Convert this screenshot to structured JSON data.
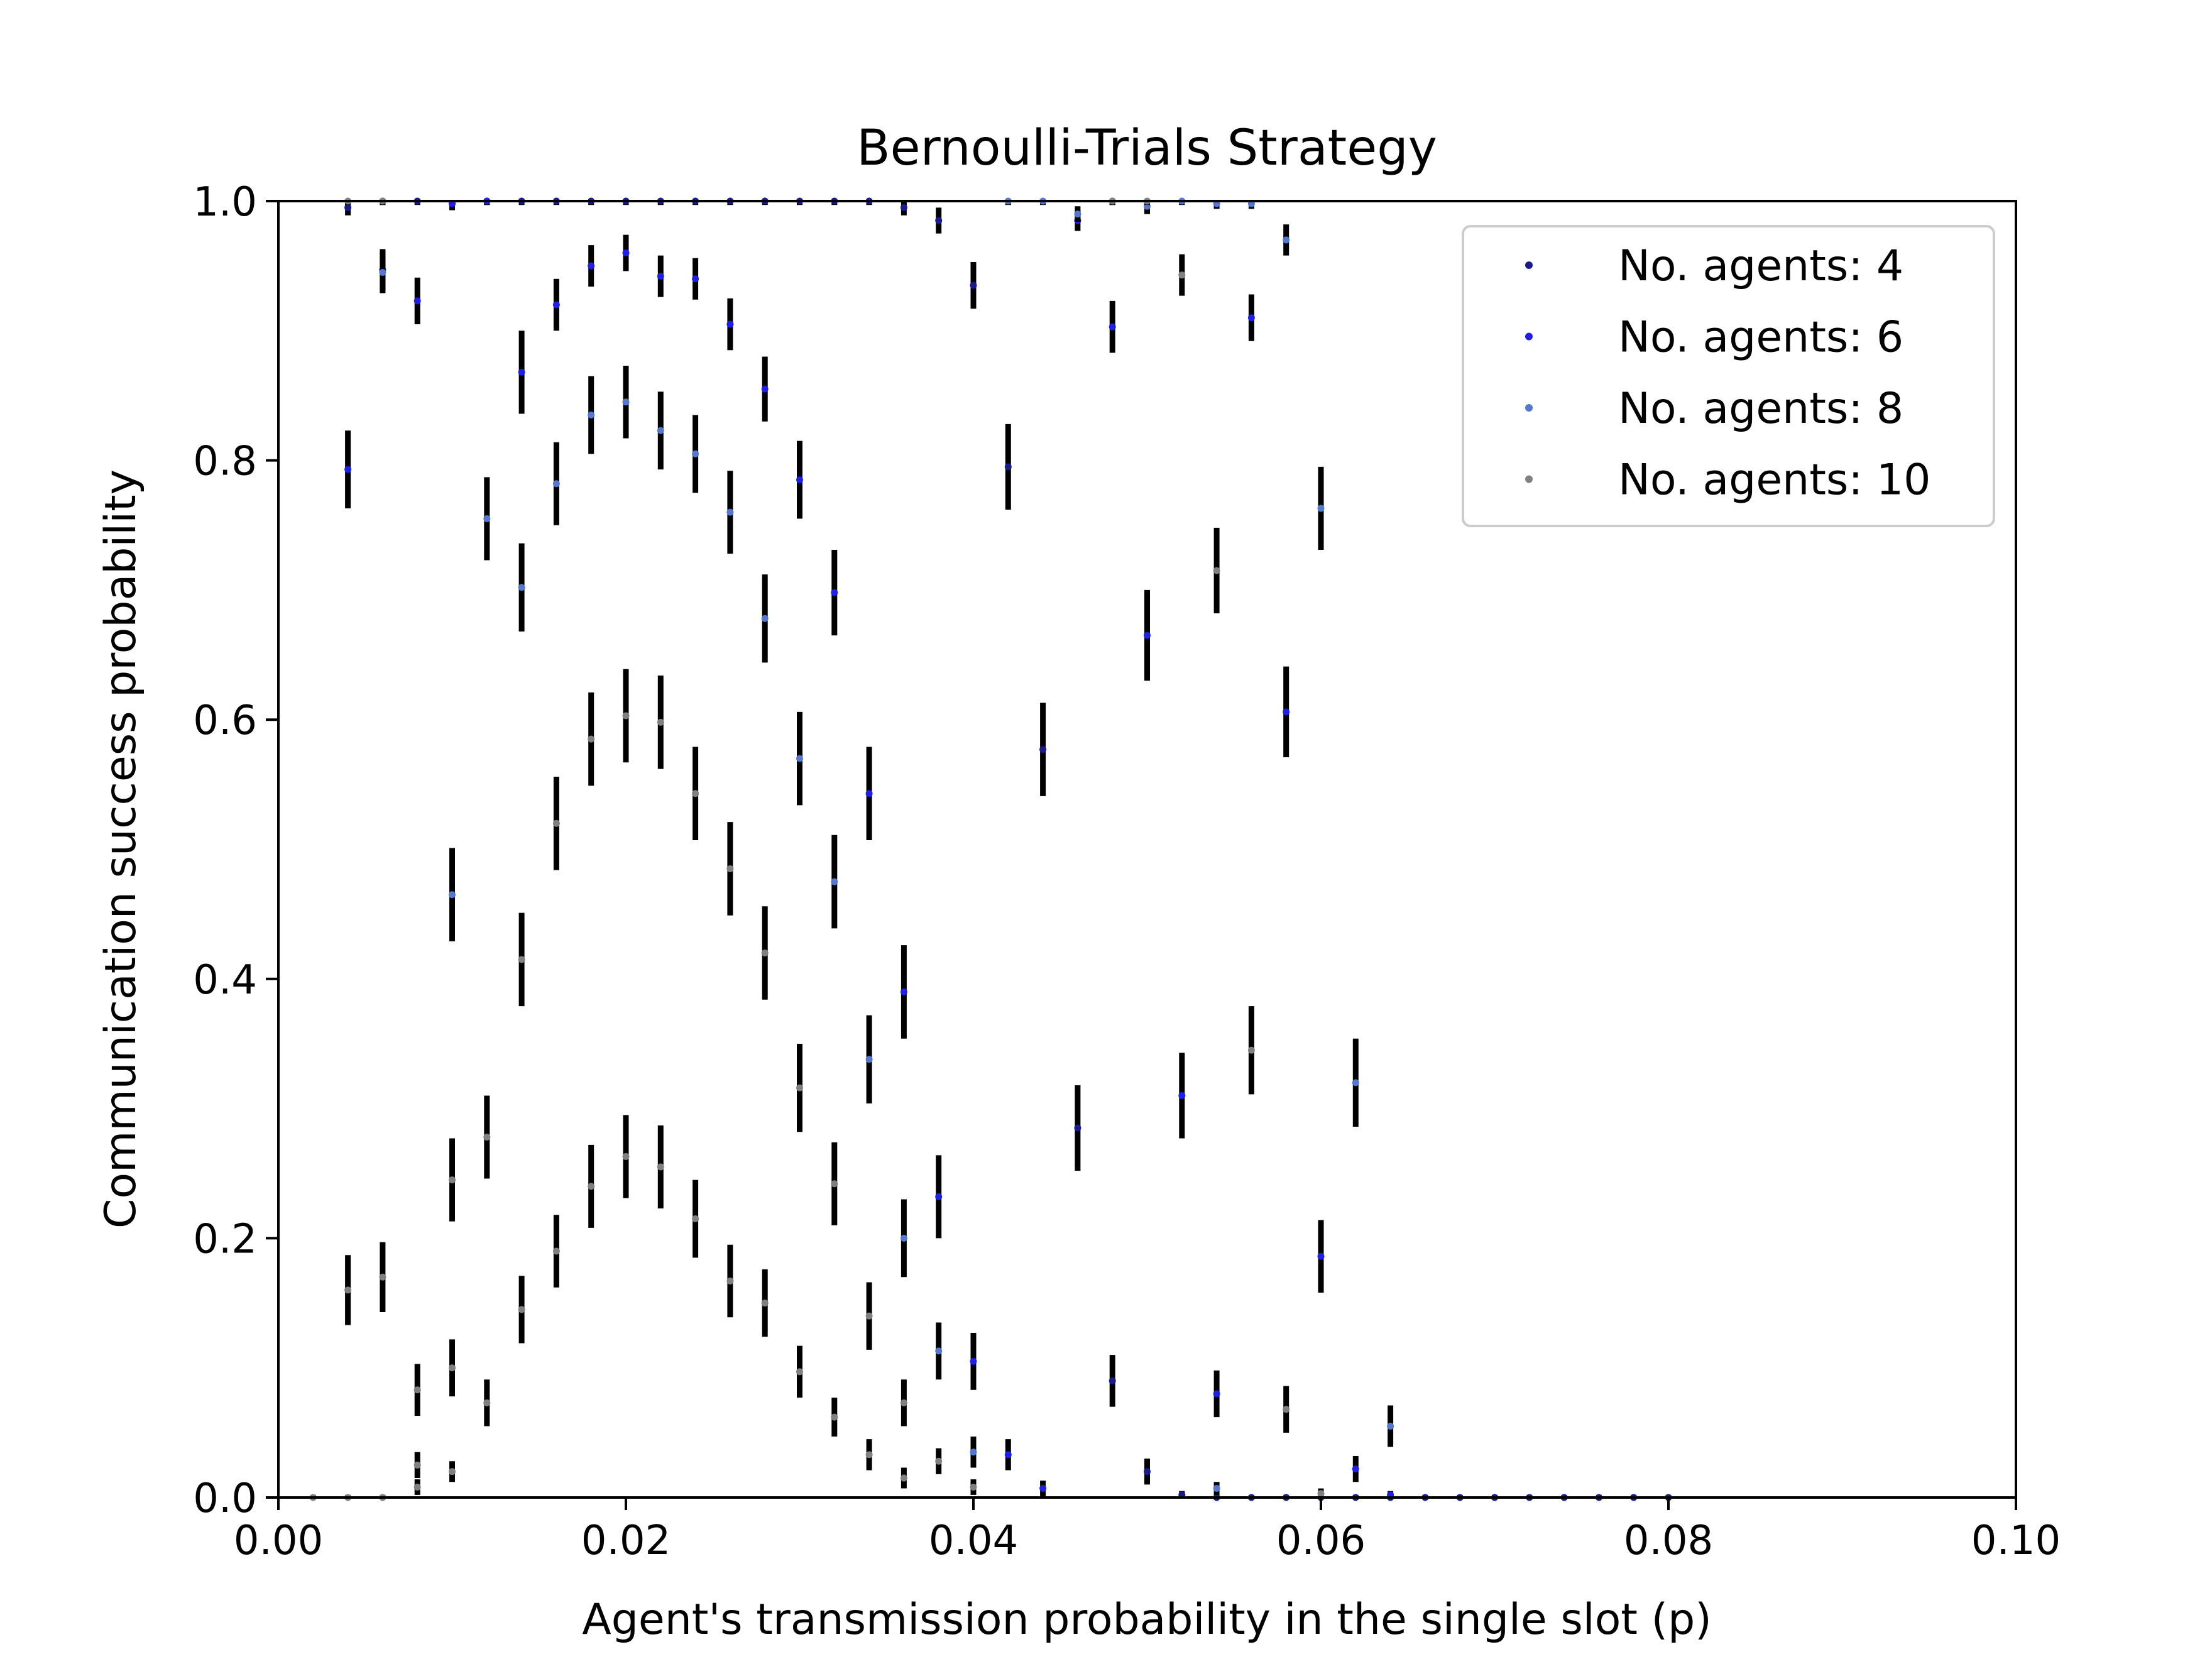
{
  "chart_data": {
    "type": "scatter",
    "title": "Bernoulli-Trials Strategy",
    "xlabel": "Agent's transmission probability in the single slot (p)",
    "ylabel": "Communication success probability",
    "xlim": [
      0.0,
      0.1
    ],
    "ylim": [
      0.0,
      1.0
    ],
    "xticks": [
      "0.00",
      "0.02",
      "0.04",
      "0.06",
      "0.08",
      "0.10"
    ],
    "yticks": [
      "0.0",
      "0.2",
      "0.4",
      "0.6",
      "0.8",
      "1.0"
    ],
    "grid": false,
    "legend_position": "top-right",
    "errorbar_color": "#000000",
    "series": [
      {
        "name": "No. agents: 4",
        "color": "#1a1a8c",
        "points": [
          [
            0.004,
            0.995,
            0.006
          ],
          [
            0.006,
            1.0,
            0.003
          ],
          [
            0.008,
            1.0,
            0.003
          ],
          [
            0.01,
            0.998,
            0.005
          ],
          [
            0.012,
            1.0,
            0.003
          ],
          [
            0.014,
            1.0,
            0.003
          ],
          [
            0.016,
            1.0,
            0.003
          ],
          [
            0.018,
            1.0,
            0.003
          ],
          [
            0.02,
            1.0,
            0.003
          ],
          [
            0.022,
            1.0,
            0.003
          ],
          [
            0.024,
            1.0,
            0.003
          ],
          [
            0.026,
            1.0,
            0.003
          ],
          [
            0.028,
            1.0,
            0.003
          ],
          [
            0.03,
            1.0,
            0.003
          ],
          [
            0.032,
            1.0,
            0.003
          ],
          [
            0.034,
            1.0,
            0.003
          ],
          [
            0.036,
            0.995,
            0.006
          ],
          [
            0.038,
            0.985,
            0.01
          ],
          [
            0.04,
            0.935,
            0.018
          ],
          [
            0.042,
            0.795,
            0.033
          ],
          [
            0.044,
            0.577,
            0.036
          ],
          [
            0.046,
            0.285,
            0.033
          ],
          [
            0.048,
            0.09,
            0.02
          ],
          [
            0.05,
            0.02,
            0.01
          ],
          [
            0.052,
            0.002,
            0.003
          ],
          [
            0.054,
            0.0,
            0.002
          ],
          [
            0.056,
            0.0,
            0.002
          ],
          [
            0.058,
            0.0,
            0.002
          ],
          [
            0.06,
            0.0,
            0.002
          ],
          [
            0.062,
            0.0,
            0.002
          ],
          [
            0.064,
            0.0,
            0.002
          ],
          [
            0.066,
            0.0,
            0.002
          ],
          [
            0.068,
            0.0,
            0.002
          ],
          [
            0.07,
            0.0,
            0.002
          ],
          [
            0.072,
            0.0,
            0.002
          ],
          [
            0.074,
            0.0,
            0.002
          ],
          [
            0.076,
            0.0,
            0.002
          ],
          [
            0.078,
            0.0,
            0.002
          ],
          [
            0.08,
            0.0,
            0.002
          ]
        ]
      },
      {
        "name": "No. agents: 6",
        "color": "#1f1fe6",
        "points": [
          [
            0.004,
            0.793,
            0.03
          ],
          [
            0.006,
            0.947,
            0.016
          ],
          [
            0.008,
            0.923,
            0.018
          ],
          [
            0.01,
            0.998,
            0.005
          ],
          [
            0.012,
            1.0,
            0.003
          ],
          [
            0.014,
            0.868,
            0.032
          ],
          [
            0.016,
            0.92,
            0.02
          ],
          [
            0.018,
            0.95,
            0.016
          ],
          [
            0.02,
            0.96,
            0.014
          ],
          [
            0.022,
            0.942,
            0.016
          ],
          [
            0.024,
            0.94,
            0.016
          ],
          [
            0.026,
            0.905,
            0.02
          ],
          [
            0.028,
            0.855,
            0.025
          ],
          [
            0.03,
            0.785,
            0.03
          ],
          [
            0.032,
            0.698,
            0.033
          ],
          [
            0.034,
            0.543,
            0.036
          ],
          [
            0.036,
            0.39,
            0.036
          ],
          [
            0.038,
            0.232,
            0.032
          ],
          [
            0.04,
            0.105,
            0.022
          ],
          [
            0.042,
            0.033,
            0.012
          ],
          [
            0.044,
            0.007,
            0.006
          ],
          [
            0.046,
            0.985,
            0.008
          ],
          [
            0.048,
            0.903,
            0.02
          ],
          [
            0.05,
            0.665,
            0.035
          ],
          [
            0.052,
            0.31,
            0.033
          ],
          [
            0.054,
            0.08,
            0.018
          ],
          [
            0.056,
            0.91,
            0.018
          ],
          [
            0.058,
            0.606,
            0.035
          ],
          [
            0.06,
            0.186,
            0.028
          ],
          [
            0.062,
            0.022,
            0.01
          ],
          [
            0.064,
            0.002,
            0.003
          ]
        ]
      },
      {
        "name": "No. agents: 8",
        "color": "#5577cc",
        "points": [
          [
            0.006,
            0.945,
            0.016
          ],
          [
            0.01,
            0.465,
            0.036
          ],
          [
            0.012,
            0.755,
            0.032
          ],
          [
            0.014,
            0.702,
            0.034
          ],
          [
            0.016,
            0.782,
            0.032
          ],
          [
            0.018,
            0.835,
            0.03
          ],
          [
            0.02,
            0.845,
            0.028
          ],
          [
            0.022,
            0.823,
            0.03
          ],
          [
            0.024,
            0.805,
            0.03
          ],
          [
            0.026,
            0.76,
            0.032
          ],
          [
            0.028,
            0.678,
            0.034
          ],
          [
            0.03,
            0.57,
            0.036
          ],
          [
            0.032,
            0.475,
            0.036
          ],
          [
            0.034,
            0.338,
            0.034
          ],
          [
            0.036,
            0.2,
            0.03
          ],
          [
            0.038,
            0.113,
            0.022
          ],
          [
            0.04,
            0.035,
            0.012
          ],
          [
            0.042,
            1.0,
            0.003
          ],
          [
            0.044,
            1.0,
            0.003
          ],
          [
            0.046,
            0.99,
            0.006
          ],
          [
            0.048,
            1.0,
            0.003
          ],
          [
            0.05,
            0.996,
            0.006
          ],
          [
            0.052,
            1.0,
            0.003
          ],
          [
            0.054,
            0.998,
            0.004
          ],
          [
            0.056,
            0.998,
            0.004
          ],
          [
            0.058,
            0.97,
            0.012
          ],
          [
            0.06,
            0.763,
            0.032
          ],
          [
            0.062,
            0.32,
            0.034
          ],
          [
            0.064,
            0.055,
            0.016
          ],
          [
            0.054,
            0.007,
            0.005
          ]
        ]
      },
      {
        "name": "No. agents: 10",
        "color": "#808080",
        "points": [
          [
            0.004,
            0.16,
            0.027
          ],
          [
            0.006,
            0.17,
            0.027
          ],
          [
            0.008,
            0.083,
            0.02
          ],
          [
            0.01,
            0.1,
            0.022
          ],
          [
            0.012,
            0.073,
            0.018
          ],
          [
            0.014,
            0.415,
            0.036
          ],
          [
            0.016,
            0.52,
            0.036
          ],
          [
            0.018,
            0.585,
            0.036
          ],
          [
            0.02,
            0.603,
            0.036
          ],
          [
            0.022,
            0.598,
            0.036
          ],
          [
            0.024,
            0.543,
            0.036
          ],
          [
            0.026,
            0.485,
            0.036
          ],
          [
            0.028,
            0.42,
            0.036
          ],
          [
            0.03,
            0.316,
            0.034
          ],
          [
            0.032,
            0.242,
            0.032
          ],
          [
            0.034,
            0.14,
            0.026
          ],
          [
            0.036,
            0.073,
            0.018
          ],
          [
            0.038,
            0.028,
            0.01
          ],
          [
            0.04,
            0.008,
            0.006
          ],
          [
            0.008,
            0.025,
            0.01
          ],
          [
            0.01,
            0.245,
            0.032
          ],
          [
            0.012,
            0.278,
            0.032
          ],
          [
            0.014,
            0.145,
            0.026
          ],
          [
            0.016,
            0.19,
            0.028
          ],
          [
            0.018,
            0.24,
            0.032
          ],
          [
            0.02,
            0.263,
            0.032
          ],
          [
            0.022,
            0.255,
            0.032
          ],
          [
            0.024,
            0.215,
            0.03
          ],
          [
            0.026,
            0.167,
            0.028
          ],
          [
            0.028,
            0.15,
            0.026
          ],
          [
            0.03,
            0.097,
            0.02
          ],
          [
            0.032,
            0.062,
            0.015
          ],
          [
            0.034,
            0.033,
            0.012
          ],
          [
            0.036,
            0.015,
            0.008
          ],
          [
            0.008,
            0.008,
            0.006
          ],
          [
            0.01,
            0.02,
            0.008
          ],
          [
            0.05,
            1.0,
            0.003
          ],
          [
            0.052,
            0.943,
            0.016
          ],
          [
            0.054,
            0.715,
            0.033
          ],
          [
            0.056,
            0.345,
            0.034
          ],
          [
            0.058,
            0.068,
            0.018
          ],
          [
            0.06,
            0.003,
            0.004
          ],
          [
            0.048,
            1.0,
            0.003
          ],
          [
            0.004,
            1.0,
            0.003
          ],
          [
            0.006,
            1.0,
            0.003
          ],
          [
            0.002,
            0.0,
            0.002
          ],
          [
            0.004,
            0.0,
            0.002
          ],
          [
            0.006,
            0.0,
            0.002
          ]
        ]
      }
    ]
  }
}
